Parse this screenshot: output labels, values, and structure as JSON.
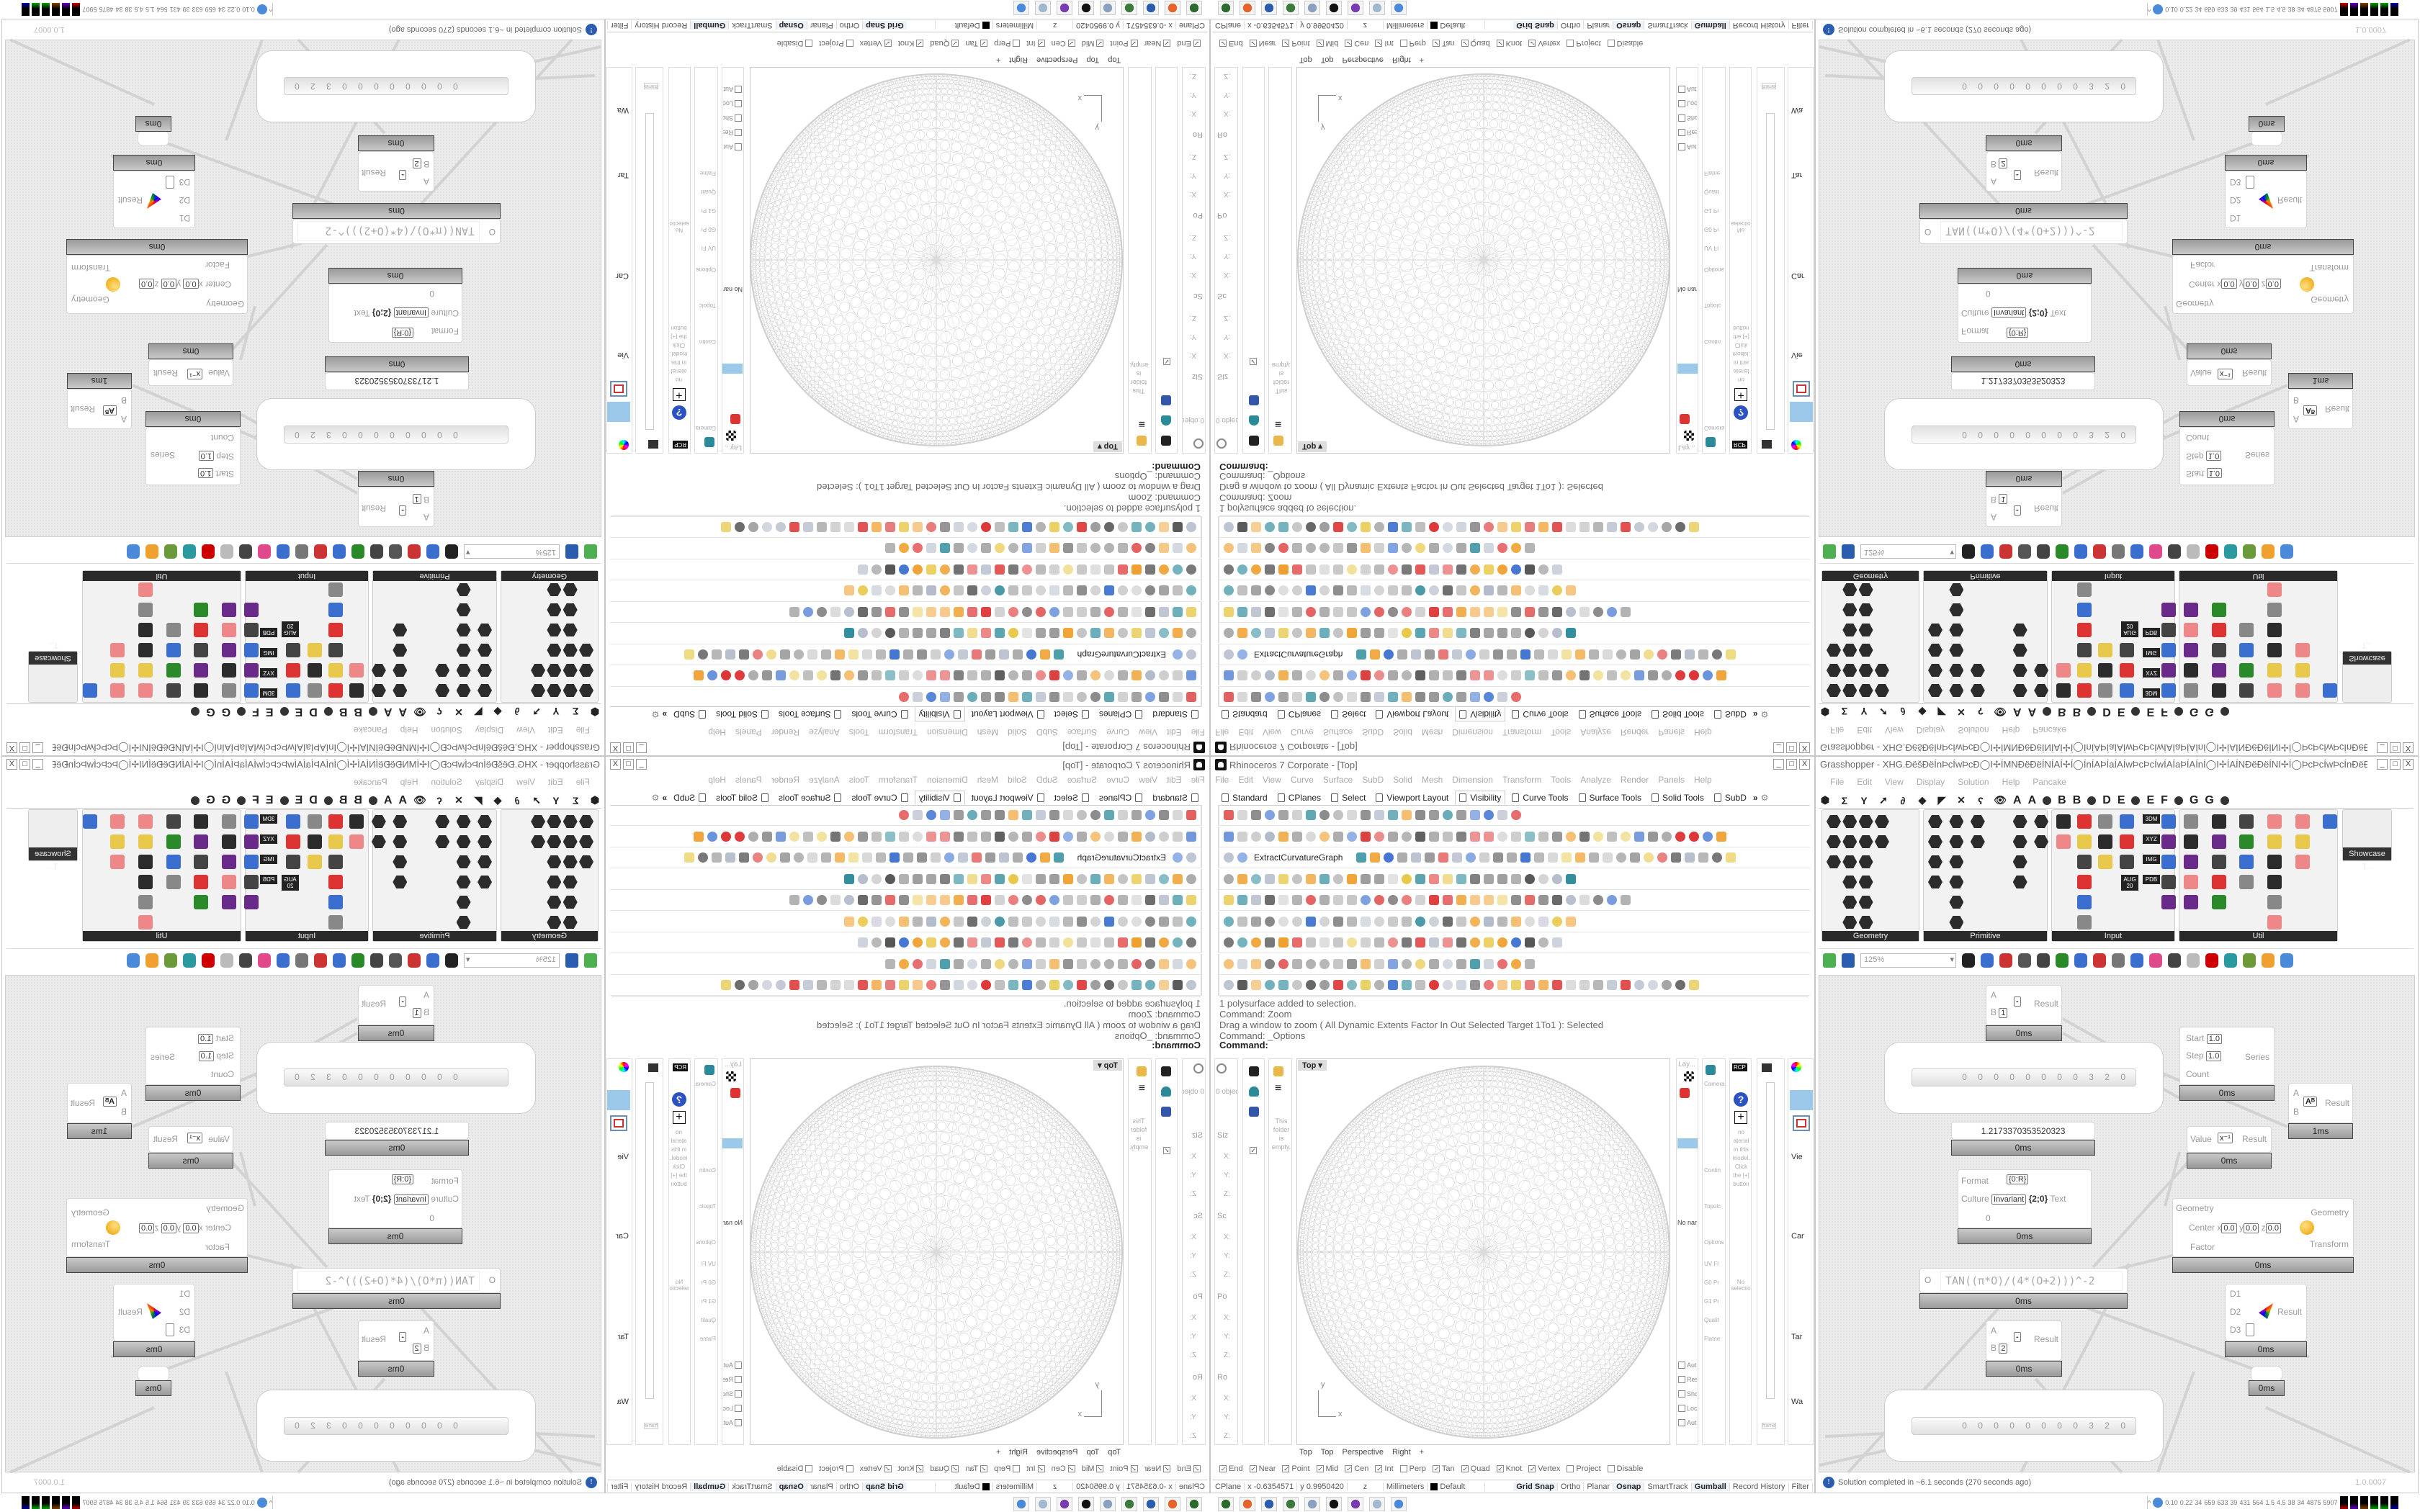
{
  "rhino": {
    "title": "Rhinoceros 7 Corporate - [Top]",
    "menu": [
      "File",
      "Edit",
      "View",
      "Curve",
      "Surface",
      "SubD",
      "Solid",
      "Mesh",
      "Dimension",
      "Transform",
      "Tools",
      "Analyze",
      "Render",
      "Panels",
      "Help"
    ],
    "toolbar_tabs": [
      "Standard",
      "CPlanes",
      "Select",
      "Viewport Layout",
      "Visibility",
      "Curve Tools",
      "Surface Tools",
      "Solid Tools",
      "SubD"
    ],
    "active_tab": "Visibility",
    "toolbar_more": "»",
    "extract_label": "ExtractCurvatureGraph",
    "command_history": [
      "1 polysurface added to selection.",
      "Command: Zoom",
      "Drag a window to zoom ( All  Dynamic  Extents  Factor  In  Out  Selected  Target  1To1 ): Selected",
      "Command: _Options"
    ],
    "command_prompt": "Command:",
    "viewport": {
      "label": "Top ▾",
      "axis_x": "x",
      "axis_y": "y"
    },
    "viewport_tabs": [
      "Top",
      "Top",
      "Perspective",
      "Right",
      "+"
    ],
    "left_panel": {
      "objects": "0 object",
      "sections": [
        "Siz",
        "Sc",
        "Po",
        "Ro"
      ],
      "axes": [
        "X:",
        "Y:",
        "Z:"
      ],
      "folder_empty": "This folder is empty."
    },
    "right_panels": {
      "layers": "Lay...",
      "no_named": "No nar",
      "checkboxes": [
        "Aut",
        "Res",
        "Sho",
        "Loc",
        "Aut"
      ],
      "camera": "Camera",
      "options": [
        "Contin",
        "Topolc",
        "Options",
        "UV Fl",
        "G0 Pr",
        "G1 Pr",
        "Qualit",
        "Flatne"
      ],
      "material_msg": "no aterial in this model. Click the [+] button",
      "no_selection": "No selectio",
      "rcp": "RCP",
      "view_labels": [
        "Vie",
        "Car",
        "Tar",
        "Wa"
      ],
      "frame": "frame"
    },
    "osnaps": [
      {
        "label": "End",
        "checked": true
      },
      {
        "label": "Near",
        "checked": true
      },
      {
        "label": "Point",
        "checked": true
      },
      {
        "label": "Mid",
        "checked": true
      },
      {
        "label": "Cen",
        "checked": true
      },
      {
        "label": "Int",
        "checked": true
      },
      {
        "label": "Perp",
        "checked": false
      },
      {
        "label": "Tan",
        "checked": true
      },
      {
        "label": "Quad",
        "checked": true
      },
      {
        "label": "Knot",
        "checked": true
      },
      {
        "label": "Vertex",
        "checked": true
      },
      {
        "label": "Project",
        "checked": false
      },
      {
        "label": "Disable",
        "checked": false
      }
    ],
    "status": {
      "cplane": "CPlane",
      "x": "x -0.6354571",
      "y": "y 0.9950420",
      "z": "z",
      "units": "Millimeters",
      "layer": "Default",
      "toggles": [
        {
          "label": "Grid Snap",
          "on": true
        },
        {
          "label": "Ortho",
          "on": false
        },
        {
          "label": "Planar",
          "on": false
        },
        {
          "label": "Osnap",
          "on": true
        },
        {
          "label": "SmartTrack",
          "on": false
        },
        {
          "label": "Gumball",
          "on": true
        },
        {
          "label": "Record History",
          "on": false
        },
        {
          "label": "Filter",
          "on": false
        }
      ]
    }
  },
  "grasshopper": {
    "title": "Grasshopper - XHG.ÐëšÐëÍnÞcÍwÞcÐ◯I✢ÍMNÐëÐëÍNÍAÍ✢Í◯ÍnÍAÞÍaÍAÍwÞcÞcÍwÍAÍaÞÍAÍnÍ◯I✢ÍAÍNÐëÐëÍNI✢Í◯ÞcÞcÍwÞcÍnÐëÐëÍ*",
    "menu": [
      "File",
      "Edit",
      "View",
      "Display",
      "Solution",
      "Help",
      "Pancake"
    ],
    "tab_letters": [
      "A",
      "A",
      "B",
      "B",
      "D",
      "E",
      "E",
      "F",
      "G",
      "G"
    ],
    "panels": [
      "Geometry",
      "Primitive",
      "Input",
      "Util"
    ],
    "showcase": "Showcase T...",
    "input_icons": [
      "AUG 20",
      "3DM",
      "XYZ",
      "IMG",
      "PDB"
    ],
    "zoom": "125%",
    "components": {
      "sub1": {
        "a": "A",
        "b": "B",
        "b_value": "1",
        "op": "-",
        "out": "Result",
        "time": "0ms"
      },
      "slider1": {
        "digits": "0 0 0 0 0 0 0 0 3 2 0"
      },
      "series": {
        "start": "Start",
        "start_value": "1.0",
        "step": "Step",
        "step_value": "1.0",
        "count": "Count",
        "out": "Series",
        "time": "0ms"
      },
      "power": {
        "a": "A",
        "b": "B",
        "op": "Aᴮ",
        "out": "Result",
        "time": "1ms"
      },
      "panel": {
        "value": "1.2173370353520323",
        "time": "0ms"
      },
      "reciprocal": {
        "in": "Value",
        "op": "x⁻¹",
        "out": "Result",
        "time": "0ms"
      },
      "format": {
        "format": "Format",
        "format_value": "{0:R}",
        "culture": "Culture",
        "culture_value": "Invariant",
        "list": "{2;0}",
        "out": "Text",
        "extra": "0",
        "time": "0ms"
      },
      "scale": {
        "geometry_in": "Geometry",
        "center": "Center",
        "cx": "0.0",
        "cy": "0.0",
        "cz": "0.0",
        "factor": "Factor",
        "geometry_out": "Geometry",
        "transform": "Transform",
        "time": "0ms"
      },
      "expression": {
        "in": "O",
        "expr": "TAN((π*O)/(4*(O+2)))^-2",
        "time": "0ms"
      },
      "merge": {
        "d1": "D1",
        "d2": "D2",
        "d3": "D3",
        "out": "Result",
        "time": "0ms"
      },
      "sub2": {
        "a": "A",
        "b": "B",
        "b_value": "2",
        "op": "-",
        "out": "Result",
        "time": "0ms"
      },
      "param": {
        "time": "0ms"
      },
      "slider2": {
        "digits": "0 0 0 0 0 0 0 0 3 2 0"
      }
    },
    "status": "Solution completed in ~6.1 seconds (270 seconds ago)",
    "version": "1.0.0007"
  },
  "tray": {
    "values": [
      "0.10",
      "0.22",
      "34",
      "659",
      "633",
      "39",
      "431",
      "564",
      "1.5",
      "4.5",
      "38",
      "34",
      "4875",
      "5907"
    ]
  }
}
